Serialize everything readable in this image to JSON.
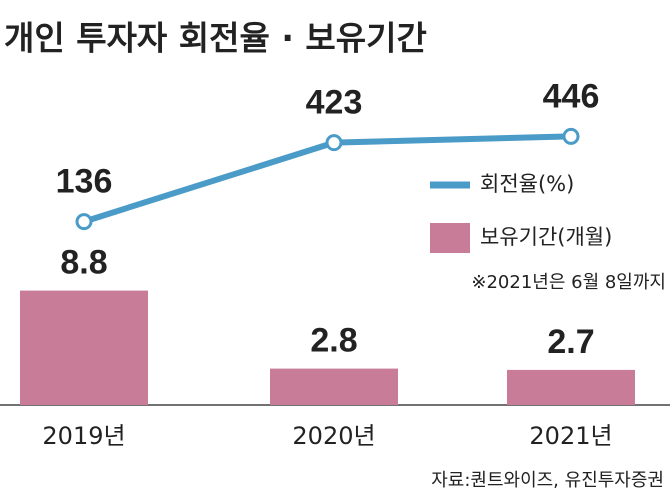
{
  "chart_data": {
    "type": "combo",
    "title": "개인 투자자 회전율 · 보유기간",
    "categories": [
      "2019년",
      "2020년",
      "2021년"
    ],
    "series": [
      {
        "name": "회전율(%)",
        "type": "line",
        "color": "#4a9bc8",
        "axis": "y2",
        "values": [
          136,
          423,
          446
        ]
      },
      {
        "name": "보유기간(개월)",
        "type": "bar",
        "color": "#c87c98",
        "values": [
          8.8,
          2.8,
          2.7
        ]
      }
    ],
    "note": "※2021년은 6월 8일까지",
    "source": "자료:퀀트와이즈, 유진투자증권",
    "legend": "right"
  }
}
